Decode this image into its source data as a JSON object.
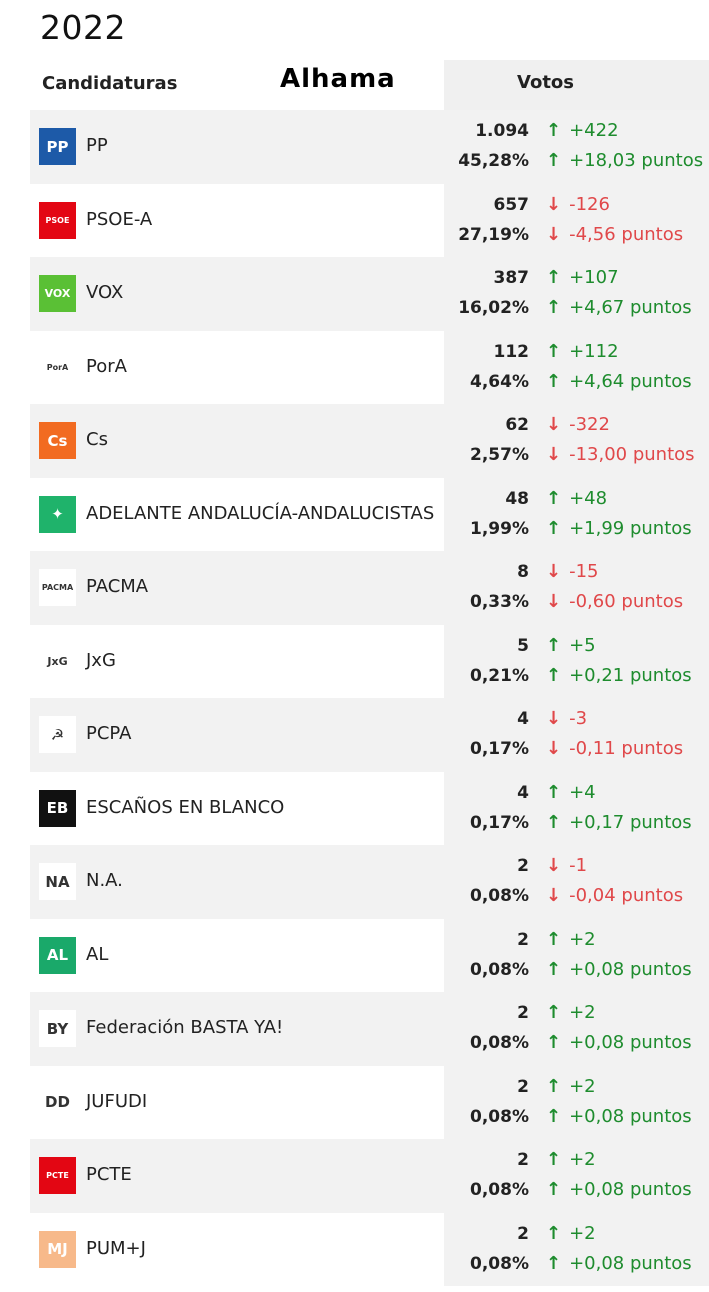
{
  "header": {
    "year": "2022",
    "candidates_label": "Candidaturas",
    "place": "Alhama",
    "votes_label": "Votos"
  },
  "colors": {
    "up": "#1e8c2e",
    "down": "#e0484a"
  },
  "parties": [
    {
      "name": "PP",
      "logo_text": "PP",
      "logo_color": "#1d5aa8",
      "votes": "1.094",
      "pct": "45,28%",
      "dir": "up",
      "vchange": "+422",
      "pchange": "+18,03 puntos",
      "icon": "pp-logo-icon"
    },
    {
      "name": "PSOE-A",
      "logo_text": "PSOE",
      "logo_color": "#e30613",
      "votes": "657",
      "pct": "27,19%",
      "dir": "down",
      "vchange": "-126",
      "pchange": "-4,56 puntos",
      "icon": "psoe-logo-icon"
    },
    {
      "name": "VOX",
      "logo_text": "VOX",
      "logo_color": "#5ac035",
      "votes": "387",
      "pct": "16,02%",
      "dir": "up",
      "vchange": "+107",
      "pchange": "+4,67 puntos",
      "icon": "vox-logo-icon"
    },
    {
      "name": "PorA",
      "logo_text": "PorA",
      "logo_color": "#ffffff",
      "votes": "112",
      "pct": "4,64%",
      "dir": "up",
      "vchange": "+112",
      "pchange": "+4,64 puntos",
      "icon": "pora-logo-icon"
    },
    {
      "name": "Cs",
      "logo_text": "Cs",
      "logo_color": "#f26b21",
      "votes": "62",
      "pct": "2,57%",
      "dir": "down",
      "vchange": "-322",
      "pchange": "-13,00 puntos",
      "icon": "cs-logo-icon"
    },
    {
      "name": "ADELANTE ANDALUCÍA-ANDALUCISTAS",
      "logo_text": "✦",
      "logo_color": "#1fb36b",
      "votes": "48",
      "pct": "1,99%",
      "dir": "up",
      "vchange": "+48",
      "pchange": "+1,99 puntos",
      "icon": "adelante-logo-icon"
    },
    {
      "name": "PACMA",
      "logo_text": "PACMA",
      "logo_color": "#ffffff",
      "votes": "8",
      "pct": "0,33%",
      "dir": "down",
      "vchange": "-15",
      "pchange": "-0,60 puntos",
      "icon": "pacma-logo-icon"
    },
    {
      "name": "JxG",
      "logo_text": "JxG",
      "logo_color": "#ffffff",
      "votes": "5",
      "pct": "0,21%",
      "dir": "up",
      "vchange": "+5",
      "pchange": "+0,21 puntos",
      "icon": "jxg-logo-icon"
    },
    {
      "name": "PCPA",
      "logo_text": "☭",
      "logo_color": "#ffffff",
      "votes": "4",
      "pct": "0,17%",
      "dir": "down",
      "vchange": "-3",
      "pchange": "-0,11 puntos",
      "icon": "pcpa-logo-icon"
    },
    {
      "name": "ESCAÑOS EN BLANCO",
      "logo_text": "EB",
      "logo_color": "#111111",
      "votes": "4",
      "pct": "0,17%",
      "dir": "up",
      "vchange": "+4",
      "pchange": "+0,17 puntos",
      "icon": "eb-logo-icon"
    },
    {
      "name": "N.A.",
      "logo_text": "NA",
      "logo_color": "#ffffff",
      "votes": "2",
      "pct": "0,08%",
      "dir": "down",
      "vchange": "-1",
      "pchange": "-0,04 puntos",
      "icon": "na-logo-icon"
    },
    {
      "name": "AL",
      "logo_text": "AL",
      "logo_color": "#1aa96a",
      "votes": "2",
      "pct": "0,08%",
      "dir": "up",
      "vchange": "+2",
      "pchange": "+0,08 puntos",
      "icon": "al-logo-icon"
    },
    {
      "name": "Federación BASTA YA!",
      "logo_text": "BY",
      "logo_color": "#ffffff",
      "votes": "2",
      "pct": "0,08%",
      "dir": "up",
      "vchange": "+2",
      "pchange": "+0,08 puntos",
      "icon": "bastaya-logo-icon"
    },
    {
      "name": "JUFUDI",
      "logo_text": "DD",
      "logo_color": "#ffffff",
      "votes": "2",
      "pct": "0,08%",
      "dir": "up",
      "vchange": "+2",
      "pchange": "+0,08 puntos",
      "icon": "jufudi-logo-icon"
    },
    {
      "name": "PCTE",
      "logo_text": "PCTE",
      "logo_color": "#e30613",
      "votes": "2",
      "pct": "0,08%",
      "dir": "up",
      "vchange": "+2",
      "pchange": "+0,08 puntos",
      "icon": "pcte-logo-icon"
    },
    {
      "name": "PUM+J",
      "logo_text": "MJ",
      "logo_color": "#f7b98a",
      "votes": "2",
      "pct": "0,08%",
      "dir": "up",
      "vchange": "+2",
      "pchange": "+0,08 puntos",
      "icon": "pumj-logo-icon"
    }
  ]
}
